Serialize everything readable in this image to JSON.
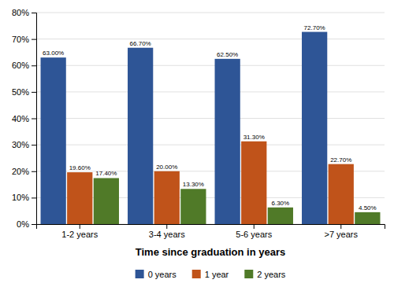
{
  "chart_data": {
    "type": "bar",
    "xlabel": "Time since graduation in years",
    "categories": [
      "1-2 years",
      "3-4 years",
      "5-6 years",
      ">7 years"
    ],
    "series": [
      {
        "name": "0 years",
        "color": "#2E5596",
        "values": [
          63.0,
          66.7,
          62.5,
          72.7
        ],
        "value_labels": [
          "63.00%",
          "66.70%",
          "62.50%",
          "72.70%"
        ]
      },
      {
        "name": "1 year",
        "color": "#C0531A",
        "values": [
          19.6,
          20.0,
          31.3,
          22.7
        ],
        "value_labels": [
          "19.60%",
          "20.00%",
          "31.30%",
          "22.70%"
        ]
      },
      {
        "name": "2 years",
        "color": "#507A28",
        "values": [
          17.4,
          13.3,
          6.3,
          4.5
        ],
        "value_labels": [
          "17.40%",
          "13.30%",
          "6.30%",
          "4.50%"
        ]
      }
    ],
    "ylim": [
      0,
      80
    ],
    "yticks": [
      {
        "value": 0,
        "label": "0%"
      },
      {
        "value": 10,
        "label": "10%"
      },
      {
        "value": 20,
        "label": "20%"
      },
      {
        "value": 30,
        "label": "30%"
      },
      {
        "value": 40,
        "label": "40%"
      },
      {
        "value": 50,
        "label": "50%"
      },
      {
        "value": 60,
        "label": "60%"
      },
      {
        "value": 70,
        "label": "70%"
      },
      {
        "value": 80,
        "label": "80%"
      }
    ],
    "grid": true,
    "data_labels": true,
    "legend": "bottom"
  }
}
